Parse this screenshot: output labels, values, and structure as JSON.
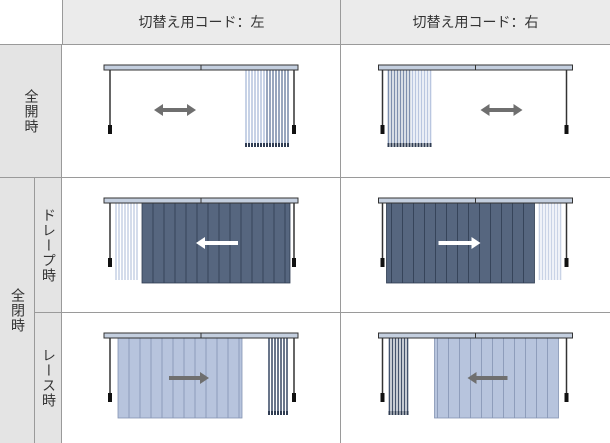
{
  "header": {
    "columns": [
      "切替え用コード：左",
      "切替え用コード：右"
    ]
  },
  "rows": {
    "open": {
      "label": "全開時"
    },
    "closed": {
      "label": "全閉時",
      "sub": [
        "ドレープ時",
        "レース時"
      ]
    }
  }
}
